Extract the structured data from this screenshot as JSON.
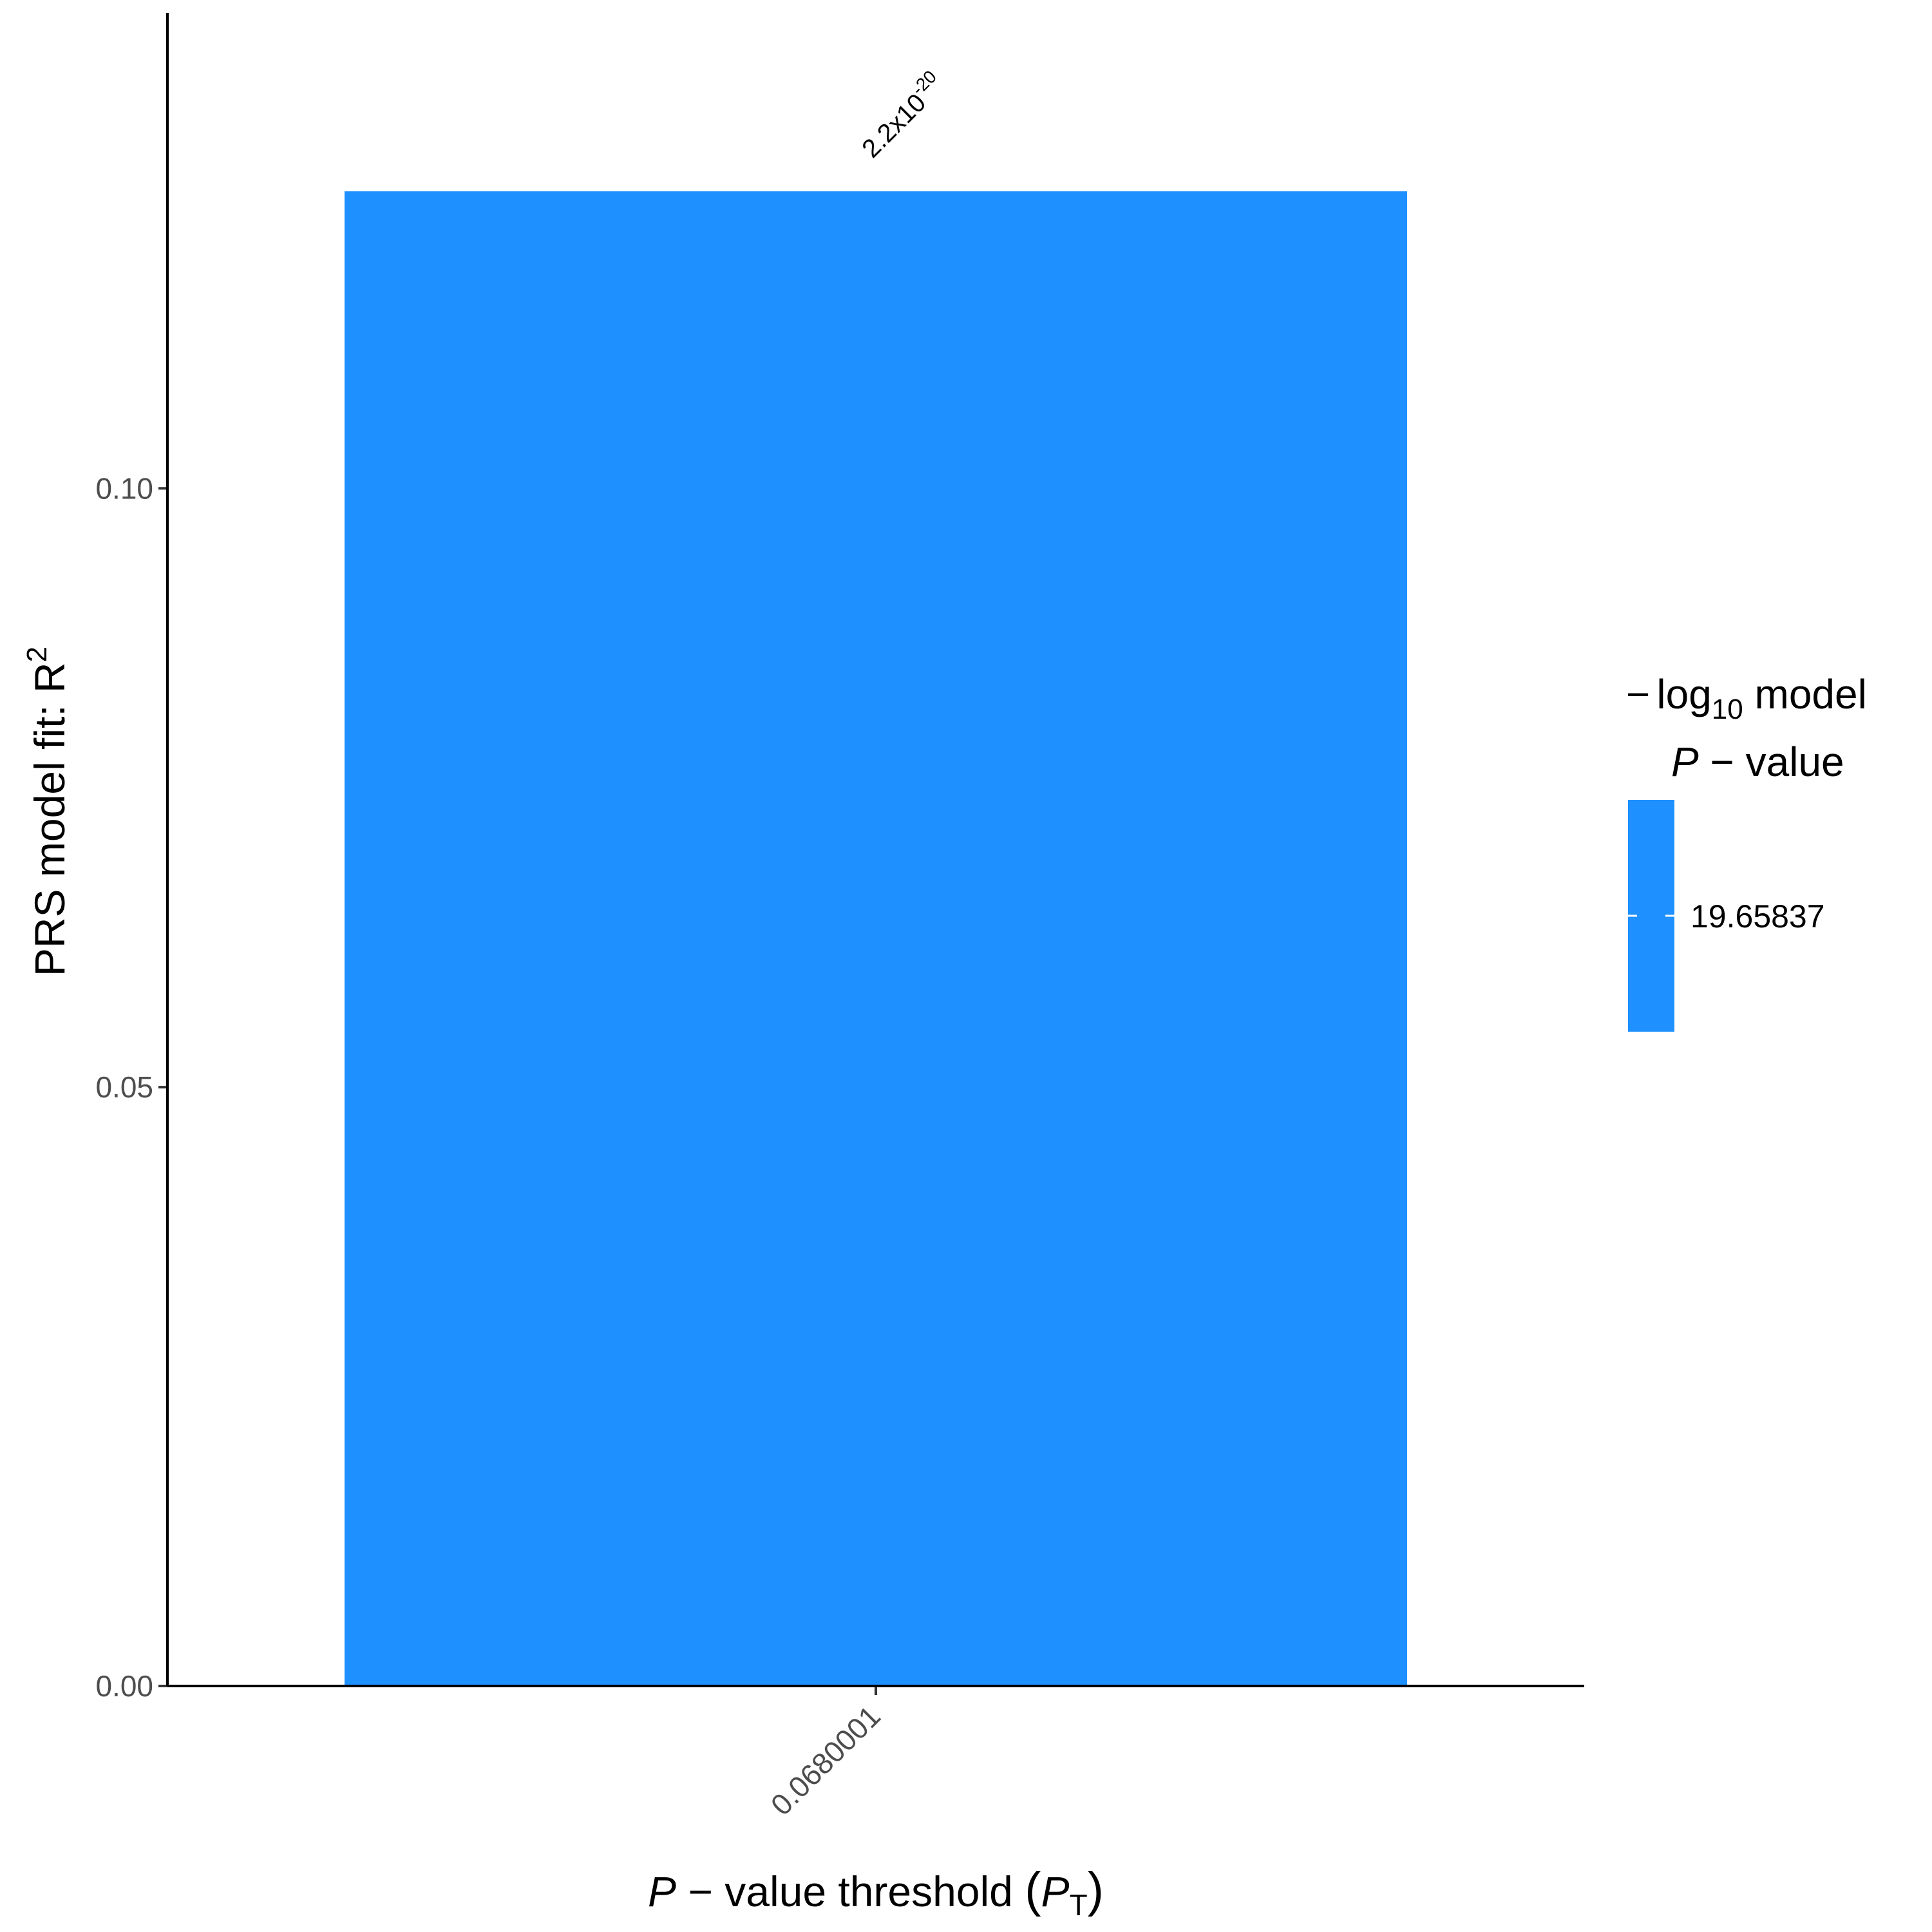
{
  "chart_data": {
    "type": "bar",
    "categories": [
      "0.0680001"
    ],
    "values": [
      0.1248
    ],
    "bar_labels": [
      {
        "mantissa": "2.2x10",
        "exponent": "-20"
      }
    ],
    "bar_color": "#1E90FF",
    "ylim": [
      0,
      0.1397
    ],
    "yticks": [
      {
        "value": 0.0,
        "label": "0.00"
      },
      {
        "value": 0.05,
        "label": "0.05"
      },
      {
        "value": 0.1,
        "label": "0.10"
      }
    ],
    "ylabel": {
      "text": "PRS model fit:  R",
      "sup": "2"
    },
    "xlabel": {
      "italic_p": "P",
      "middle": " − value threshold ",
      "open_paren": "(",
      "italic_pt": "P",
      "sub": "T",
      "close_paren": ")"
    },
    "legend": {
      "title_line1": {
        "minus": "−",
        "log": "log",
        "sub": "10",
        "rest": " model"
      },
      "title_line2": {
        "italic_p": "P",
        "rest": " − value"
      },
      "value_label": "19.65837",
      "color": "#1E90FF",
      "position": "right"
    },
    "grid": false
  }
}
